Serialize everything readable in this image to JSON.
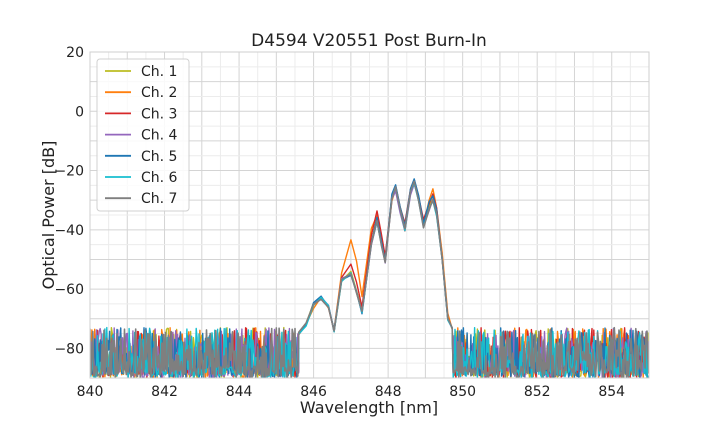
{
  "chart_data": {
    "type": "line",
    "title": "D4594 V20551 Post Burn-In",
    "xlabel": "Wavelength [nm]",
    "ylabel": "Optical Power [dB]",
    "xlim": [
      840,
      855
    ],
    "ylim": [
      -90,
      20
    ],
    "xticks": [
      840,
      842,
      844,
      846,
      848,
      850,
      852,
      854
    ],
    "yticks": [
      20,
      0,
      -20,
      -40,
      -60,
      -80
    ],
    "grid": true,
    "legend": "top-left",
    "noise_floor_db": [
      -90,
      -73
    ],
    "series": [
      {
        "name": "Ch. 1",
        "color": "#bcbd22",
        "points": [
          [
            845.6,
            -75
          ],
          [
            845.8,
            -72
          ],
          [
            846.0,
            -65
          ],
          [
            846.2,
            -63
          ],
          [
            846.4,
            -66
          ],
          [
            846.55,
            -74
          ],
          [
            846.75,
            -57
          ],
          [
            847.0,
            -54
          ],
          [
            847.15,
            -60
          ],
          [
            847.3,
            -67
          ],
          [
            847.55,
            -44
          ],
          [
            847.7,
            -36
          ],
          [
            847.82,
            -44
          ],
          [
            847.92,
            -50
          ],
          [
            848.1,
            -29
          ],
          [
            848.2,
            -26
          ],
          [
            848.32,
            -33
          ],
          [
            848.45,
            -39
          ],
          [
            848.6,
            -27
          ],
          [
            848.7,
            -23
          ],
          [
            848.82,
            -29
          ],
          [
            848.95,
            -38
          ],
          [
            849.1,
            -32
          ],
          [
            849.2,
            -29
          ],
          [
            849.3,
            -34
          ],
          [
            849.45,
            -50
          ],
          [
            849.6,
            -70
          ],
          [
            849.72,
            -73
          ]
        ]
      },
      {
        "name": "Ch. 2",
        "color": "#ff7f0e",
        "points": [
          [
            845.6,
            -75
          ],
          [
            845.8,
            -72
          ],
          [
            846.0,
            -66
          ],
          [
            846.2,
            -63
          ],
          [
            846.4,
            -67
          ],
          [
            846.55,
            -74
          ],
          [
            846.75,
            -55
          ],
          [
            847.0,
            -43
          ],
          [
            847.15,
            -51
          ],
          [
            847.3,
            -62
          ],
          [
            847.55,
            -40
          ],
          [
            847.7,
            -35
          ],
          [
            847.82,
            -43
          ],
          [
            847.92,
            -50
          ],
          [
            848.1,
            -30
          ],
          [
            848.2,
            -26
          ],
          [
            848.32,
            -33
          ],
          [
            848.45,
            -40
          ],
          [
            848.6,
            -27
          ],
          [
            848.7,
            -24
          ],
          [
            848.82,
            -30
          ],
          [
            848.95,
            -38
          ],
          [
            849.1,
            -30
          ],
          [
            849.2,
            -26
          ],
          [
            849.3,
            -32
          ],
          [
            849.45,
            -48
          ],
          [
            849.6,
            -68
          ],
          [
            849.72,
            -73
          ]
        ]
      },
      {
        "name": "Ch. 3",
        "color": "#d62728",
        "points": [
          [
            845.6,
            -75
          ],
          [
            845.8,
            -72
          ],
          [
            846.0,
            -65
          ],
          [
            846.2,
            -63
          ],
          [
            846.4,
            -66
          ],
          [
            846.55,
            -74
          ],
          [
            846.75,
            -56
          ],
          [
            847.0,
            -52
          ],
          [
            847.15,
            -58
          ],
          [
            847.3,
            -66
          ],
          [
            847.55,
            -42
          ],
          [
            847.7,
            -34
          ],
          [
            847.82,
            -42
          ],
          [
            847.92,
            -49
          ],
          [
            848.1,
            -28
          ],
          [
            848.2,
            -25
          ],
          [
            848.32,
            -32
          ],
          [
            848.45,
            -38
          ],
          [
            848.6,
            -26
          ],
          [
            848.7,
            -23
          ],
          [
            848.82,
            -29
          ],
          [
            848.95,
            -37
          ],
          [
            849.1,
            -31
          ],
          [
            849.2,
            -28
          ],
          [
            849.3,
            -33
          ],
          [
            849.45,
            -50
          ],
          [
            849.6,
            -70
          ],
          [
            849.72,
            -73
          ]
        ]
      },
      {
        "name": "Ch. 4",
        "color": "#9467bd",
        "points": [
          [
            845.6,
            -75
          ],
          [
            845.8,
            -72
          ],
          [
            846.0,
            -65
          ],
          [
            846.2,
            -63
          ],
          [
            846.4,
            -66
          ],
          [
            846.55,
            -74
          ],
          [
            846.75,
            -57
          ],
          [
            847.0,
            -55
          ],
          [
            847.15,
            -61
          ],
          [
            847.3,
            -68
          ],
          [
            847.55,
            -45
          ],
          [
            847.7,
            -37
          ],
          [
            847.82,
            -45
          ],
          [
            847.92,
            -51
          ],
          [
            848.1,
            -30
          ],
          [
            848.2,
            -27
          ],
          [
            848.32,
            -34
          ],
          [
            848.45,
            -40
          ],
          [
            848.6,
            -28
          ],
          [
            848.7,
            -24
          ],
          [
            848.82,
            -30
          ],
          [
            848.95,
            -39
          ],
          [
            849.1,
            -33
          ],
          [
            849.2,
            -30
          ],
          [
            849.3,
            -35
          ],
          [
            849.45,
            -50
          ],
          [
            849.6,
            -70
          ],
          [
            849.72,
            -73
          ]
        ]
      },
      {
        "name": "Ch. 5",
        "color": "#1f77b4",
        "points": [
          [
            845.6,
            -75
          ],
          [
            845.8,
            -72
          ],
          [
            846.0,
            -65
          ],
          [
            846.2,
            -62
          ],
          [
            846.4,
            -66
          ],
          [
            846.55,
            -74
          ],
          [
            846.75,
            -57
          ],
          [
            847.0,
            -55
          ],
          [
            847.15,
            -61
          ],
          [
            847.3,
            -68
          ],
          [
            847.55,
            -44
          ],
          [
            847.7,
            -36
          ],
          [
            847.82,
            -44
          ],
          [
            847.92,
            -50
          ],
          [
            848.1,
            -28
          ],
          [
            848.2,
            -25
          ],
          [
            848.32,
            -32
          ],
          [
            848.45,
            -39
          ],
          [
            848.6,
            -26
          ],
          [
            848.7,
            -23
          ],
          [
            848.82,
            -29
          ],
          [
            848.95,
            -38
          ],
          [
            849.1,
            -31
          ],
          [
            849.2,
            -28
          ],
          [
            849.3,
            -33
          ],
          [
            849.45,
            -50
          ],
          [
            849.6,
            -70
          ],
          [
            849.72,
            -73
          ]
        ]
      },
      {
        "name": "Ch. 6",
        "color": "#17becf",
        "points": [
          [
            845.6,
            -75
          ],
          [
            845.8,
            -72
          ],
          [
            846.0,
            -65
          ],
          [
            846.2,
            -63
          ],
          [
            846.4,
            -66
          ],
          [
            846.55,
            -74
          ],
          [
            846.75,
            -57
          ],
          [
            847.0,
            -55
          ],
          [
            847.15,
            -61
          ],
          [
            847.3,
            -68
          ],
          [
            847.55,
            -45
          ],
          [
            847.7,
            -37
          ],
          [
            847.82,
            -45
          ],
          [
            847.92,
            -51
          ],
          [
            848.1,
            -29
          ],
          [
            848.2,
            -26
          ],
          [
            848.32,
            -33
          ],
          [
            848.45,
            -40
          ],
          [
            848.6,
            -27
          ],
          [
            848.7,
            -24
          ],
          [
            848.82,
            -30
          ],
          [
            848.95,
            -39
          ],
          [
            849.1,
            -33
          ],
          [
            849.2,
            -30
          ],
          [
            849.3,
            -35
          ],
          [
            849.45,
            -50
          ],
          [
            849.6,
            -70
          ],
          [
            849.72,
            -73
          ]
        ]
      },
      {
        "name": "Ch. 7",
        "color": "#7f7f7f",
        "points": [
          [
            845.6,
            -75
          ],
          [
            845.8,
            -72
          ],
          [
            846.0,
            -65
          ],
          [
            846.2,
            -63
          ],
          [
            846.4,
            -66
          ],
          [
            846.55,
            -74
          ],
          [
            846.75,
            -57
          ],
          [
            847.0,
            -55
          ],
          [
            847.15,
            -61
          ],
          [
            847.3,
            -68
          ],
          [
            847.55,
            -45
          ],
          [
            847.7,
            -37
          ],
          [
            847.82,
            -45
          ],
          [
            847.92,
            -51
          ],
          [
            848.1,
            -29
          ],
          [
            848.2,
            -26
          ],
          [
            848.32,
            -33
          ],
          [
            848.45,
            -40
          ],
          [
            848.6,
            -27
          ],
          [
            848.7,
            -24
          ],
          [
            848.82,
            -30
          ],
          [
            848.95,
            -39
          ],
          [
            849.1,
            -33
          ],
          [
            849.2,
            -30
          ],
          [
            849.3,
            -35
          ],
          [
            849.45,
            -50
          ],
          [
            849.6,
            -70
          ],
          [
            849.72,
            -73
          ]
        ]
      }
    ]
  }
}
